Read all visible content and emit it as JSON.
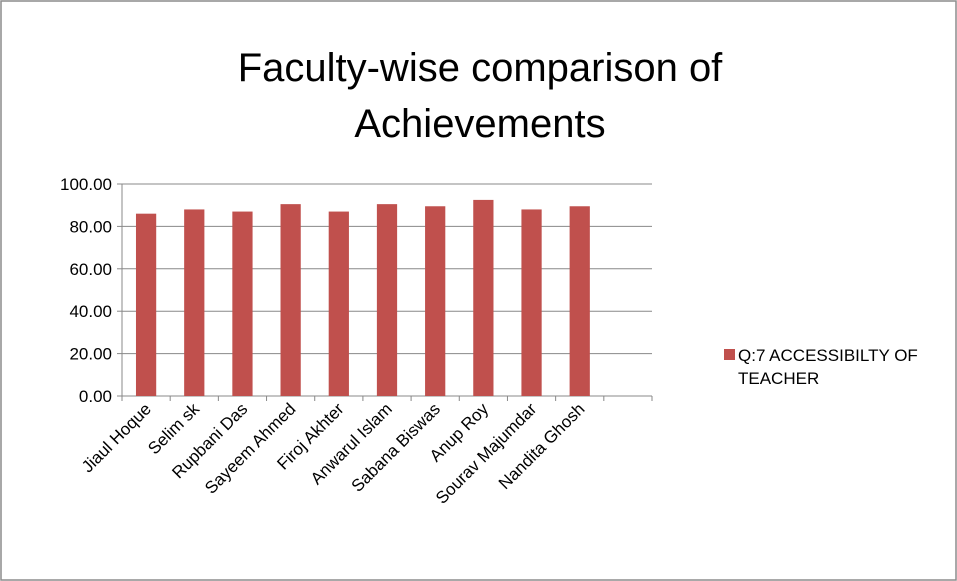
{
  "chart_data": {
    "type": "bar",
    "title": "Faculty-wise comparison of Achievements",
    "categories": [
      "Jiaul Hoque",
      "Selim sk",
      "Rupbani Das",
      "Sayeem Ahmed",
      "Firoj Akhter",
      "Anwarul Islam",
      "Sabana Biswas",
      "Anup Roy",
      "Sourav Majumdar",
      "Nandita Ghosh",
      null
    ],
    "series": [
      {
        "name": "Q:7 ACCESSIBILTY OF TEACHER",
        "color": "#c0504d",
        "values": [
          86,
          88,
          87,
          90.5,
          87,
          90.5,
          89.5,
          92.5,
          88,
          89.5,
          null
        ]
      }
    ],
    "ylim": [
      0,
      100
    ],
    "yticks": [
      {
        "value": 0,
        "label": "0.00"
      },
      {
        "value": 20,
        "label": "20.00"
      },
      {
        "value": 40,
        "label": "40.00"
      },
      {
        "value": 60,
        "label": "60.00"
      },
      {
        "value": 80,
        "label": "80.00"
      },
      {
        "value": 100,
        "label": "100.00"
      }
    ],
    "grid": true,
    "legend": "right"
  }
}
